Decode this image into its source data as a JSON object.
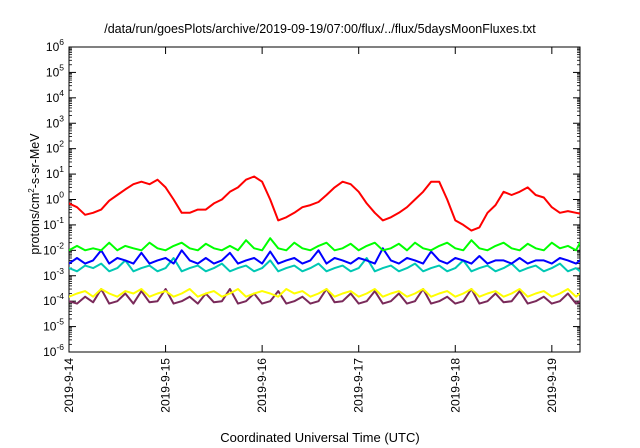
{
  "chart_data": {
    "type": "line",
    "title": "/data/run/goesPlots/archive/2019-09-19/07:00/flux/../flux/5daysMoonFluxes.txt",
    "xlabel": "Coordinated Universal Time (UTC)",
    "ylabel": {
      "pre": "protons/cm",
      "sup": "2",
      "post": "-s-sr-MeV"
    },
    "ylog": true,
    "ylim": [
      1e-06,
      1000000.0
    ],
    "yticks": [
      {
        "exp": "-6",
        "value": 1e-06
      },
      {
        "exp": "-5",
        "value": 1e-05
      },
      {
        "exp": "-4",
        "value": 0.0001
      },
      {
        "exp": "-3",
        "value": 0.001
      },
      {
        "exp": "-2",
        "value": 0.01
      },
      {
        "exp": "-1",
        "value": 0.1
      },
      {
        "exp": "0",
        "value": 1
      },
      {
        "exp": "1",
        "value": 10
      },
      {
        "exp": "2",
        "value": 100
      },
      {
        "exp": "3",
        "value": 1000
      },
      {
        "exp": "4",
        "value": 10000
      },
      {
        "exp": "5",
        "value": 100000
      },
      {
        "exp": "6",
        "value": 1000000
      }
    ],
    "ytick_base": "10",
    "xlim": [
      "2019-09-14T00:00",
      "2019-09-19T07:00"
    ],
    "xticks": [
      "2019-9-14",
      "2019-9-15",
      "2019-9-16",
      "2019-9-17",
      "2019-9-18",
      "2019-9-19"
    ],
    "x": [
      "2019-09-14T00:00",
      "2019-09-14T02:00",
      "2019-09-14T04:00",
      "2019-09-14T06:00",
      "2019-09-14T08:00",
      "2019-09-14T10:00",
      "2019-09-14T12:00",
      "2019-09-14T14:00",
      "2019-09-14T16:00",
      "2019-09-14T18:00",
      "2019-09-14T20:00",
      "2019-09-14T22:00",
      "2019-09-15T00:00",
      "2019-09-15T02:00",
      "2019-09-15T04:00",
      "2019-09-15T06:00",
      "2019-09-15T08:00",
      "2019-09-15T10:00",
      "2019-09-15T12:00",
      "2019-09-15T14:00",
      "2019-09-15T16:00",
      "2019-09-15T18:00",
      "2019-09-15T20:00",
      "2019-09-15T22:00",
      "2019-09-16T00:00",
      "2019-09-16T02:00",
      "2019-09-16T04:00",
      "2019-09-16T06:00",
      "2019-09-16T08:00",
      "2019-09-16T10:00",
      "2019-09-16T12:00",
      "2019-09-16T14:00",
      "2019-09-16T16:00",
      "2019-09-16T18:00",
      "2019-09-16T20:00",
      "2019-09-16T22:00",
      "2019-09-17T00:00",
      "2019-09-17T02:00",
      "2019-09-17T04:00",
      "2019-09-17T06:00",
      "2019-09-17T08:00",
      "2019-09-17T10:00",
      "2019-09-17T12:00",
      "2019-09-17T14:00",
      "2019-09-17T16:00",
      "2019-09-17T18:00",
      "2019-09-17T20:00",
      "2019-09-17T22:00",
      "2019-09-18T00:00",
      "2019-09-18T02:00",
      "2019-09-18T04:00",
      "2019-09-18T06:00",
      "2019-09-18T08:00",
      "2019-09-18T10:00",
      "2019-09-18T12:00",
      "2019-09-18T14:00",
      "2019-09-18T16:00",
      "2019-09-18T18:00",
      "2019-09-18T20:00",
      "2019-09-18T22:00",
      "2019-09-19T00:00",
      "2019-09-19T02:00",
      "2019-09-19T04:00",
      "2019-09-19T06:00",
      "2019-09-19T07:00"
    ],
    "series": [
      {
        "color": "#ff0000",
        "values": [
          0.7,
          0.5,
          0.25,
          0.3,
          0.4,
          0.9,
          1.5,
          2.5,
          4,
          5,
          4,
          6,
          3,
          1,
          0.3,
          0.3,
          0.4,
          0.4,
          0.7,
          1,
          2,
          3,
          6,
          8,
          5,
          1,
          0.15,
          0.2,
          0.3,
          0.5,
          0.6,
          0.8,
          1.5,
          3,
          5,
          4,
          2,
          0.7,
          0.3,
          0.15,
          0.2,
          0.3,
          0.5,
          1,
          2,
          5,
          5,
          1,
          0.15,
          0.1,
          0.06,
          0.08,
          0.3,
          0.6,
          2,
          1.5,
          2,
          3,
          1.5,
          1.2,
          0.5,
          0.3,
          0.35,
          0.3,
          0.28
        ]
      },
      {
        "color": "#00ff00",
        "values": [
          0.01,
          0.015,
          0.01,
          0.012,
          0.01,
          0.02,
          0.01,
          0.015,
          0.012,
          0.01,
          0.02,
          0.012,
          0.01,
          0.015,
          0.02,
          0.012,
          0.01,
          0.018,
          0.012,
          0.01,
          0.015,
          0.01,
          0.025,
          0.012,
          0.01,
          0.03,
          0.012,
          0.01,
          0.02,
          0.012,
          0.01,
          0.015,
          0.02,
          0.01,
          0.012,
          0.018,
          0.01,
          0.015,
          0.02,
          0.01,
          0.012,
          0.018,
          0.01,
          0.02,
          0.012,
          0.01,
          0.015,
          0.02,
          0.012,
          0.01,
          0.025,
          0.012,
          0.01,
          0.015,
          0.02,
          0.012,
          0.01,
          0.018,
          0.012,
          0.01,
          0.02,
          0.012,
          0.015,
          0.01,
          0.02
        ]
      },
      {
        "color": "#0000ff",
        "values": [
          0.003,
          0.005,
          0.003,
          0.004,
          0.01,
          0.003,
          0.005,
          0.004,
          0.003,
          0.008,
          0.003,
          0.004,
          0.005,
          0.003,
          0.01,
          0.004,
          0.003,
          0.005,
          0.003,
          0.004,
          0.008,
          0.003,
          0.004,
          0.005,
          0.003,
          0.009,
          0.003,
          0.004,
          0.005,
          0.003,
          0.004,
          0.01,
          0.003,
          0.005,
          0.004,
          0.003,
          0.005,
          0.004,
          0.003,
          0.012,
          0.004,
          0.003,
          0.005,
          0.004,
          0.003,
          0.009,
          0.004,
          0.003,
          0.005,
          0.004,
          0.003,
          0.006,
          0.003,
          0.004,
          0.004,
          0.003,
          0.005,
          0.003,
          0.004,
          0.004,
          0.003,
          0.005,
          0.004,
          0.003,
          0.004
        ]
      },
      {
        "color": "#00c8b4",
        "values": [
          0.002,
          0.0015,
          0.0025,
          0.002,
          0.003,
          0.0015,
          0.002,
          0.004,
          0.0015,
          0.002,
          0.0025,
          0.0015,
          0.002,
          0.005,
          0.0015,
          0.002,
          0.0025,
          0.0015,
          0.002,
          0.003,
          0.0015,
          0.002,
          0.0025,
          0.0015,
          0.002,
          0.004,
          0.0015,
          0.002,
          0.0025,
          0.0015,
          0.002,
          0.003,
          0.0015,
          0.002,
          0.0025,
          0.0015,
          0.002,
          0.005,
          0.0015,
          0.002,
          0.0025,
          0.0015,
          0.002,
          0.003,
          0.0015,
          0.002,
          0.0025,
          0.0015,
          0.002,
          0.004,
          0.0015,
          0.002,
          0.0025,
          0.0015,
          0.002,
          0.003,
          0.0015,
          0.002,
          0.0025,
          0.0015,
          0.002,
          0.003,
          0.0015,
          0.002,
          0.0015
        ]
      },
      {
        "color": "#ffff00",
        "values": [
          0.00015,
          0.0002,
          0.00025,
          0.00015,
          0.0003,
          0.0002,
          0.00015,
          0.00025,
          0.0002,
          0.0003,
          0.00015,
          0.0002,
          0.00025,
          0.00015,
          0.0002,
          0.0003,
          0.00015,
          0.0002,
          0.00025,
          0.00015,
          0.0002,
          0.0003,
          0.00015,
          0.0002,
          0.00025,
          0.0002,
          0.00015,
          0.0003,
          0.0002,
          0.00025,
          0.00015,
          0.0002,
          0.0003,
          0.00015,
          0.0002,
          0.00025,
          0.00015,
          0.0002,
          0.0003,
          0.00015,
          0.0002,
          0.00025,
          0.00015,
          0.0002,
          0.0003,
          0.00015,
          0.0002,
          0.00025,
          0.00015,
          0.0002,
          0.0003,
          0.00015,
          0.0002,
          0.00025,
          0.00015,
          0.0002,
          0.0003,
          0.00015,
          0.0002,
          0.00025,
          0.00015,
          0.0002,
          0.0003,
          0.00015,
          0.0002
        ]
      },
      {
        "color": "#7a2a5a",
        "values": [
          0.0001,
          8e-05,
          0.00015,
          9e-05,
          0.0003,
          8e-05,
          0.0001,
          0.0002,
          8e-05,
          0.00025,
          9e-05,
          0.0001,
          0.0003,
          8e-05,
          0.0001,
          0.00015,
          8e-05,
          0.0002,
          9e-05,
          0.0001,
          0.0003,
          8e-05,
          0.0001,
          0.0002,
          8e-05,
          0.0001,
          0.00025,
          8e-05,
          0.0001,
          0.00015,
          8e-05,
          0.0001,
          0.0003,
          9e-05,
          0.0001,
          0.0002,
          8e-05,
          0.0001,
          0.00025,
          8e-05,
          0.0001,
          0.0002,
          8e-05,
          0.0001,
          0.0003,
          8e-05,
          0.0001,
          0.00015,
          8e-05,
          0.0001,
          0.0003,
          8e-05,
          0.0001,
          0.0002,
          9e-05,
          0.0001,
          0.00025,
          8e-05,
          0.0001,
          0.00015,
          8e-05,
          0.0001,
          0.0002,
          8e-05,
          0.0001
        ]
      }
    ]
  }
}
